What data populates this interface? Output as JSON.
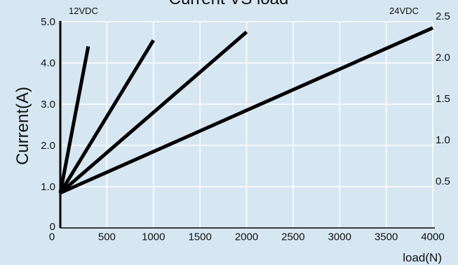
{
  "chart_data": {
    "type": "line",
    "title": "Current VS load",
    "xlabel": "load(N)",
    "ylabel": "Current(A)",
    "left_axis_tag": "12VDC",
    "right_axis_tag": "24VDC",
    "xlim": [
      0,
      4000
    ],
    "ylim": [
      0,
      5.0
    ],
    "y2lim": [
      0,
      2.5
    ],
    "x_ticks": [
      "0",
      "500",
      "1000",
      "1500",
      "2000",
      "2500",
      "3000",
      "3500",
      "4000"
    ],
    "y_ticks": [
      "0",
      "1.0",
      "2.0",
      "3.0",
      "4.0",
      "5.0"
    ],
    "y2_ticks": [
      "0.5",
      "1.0",
      "1.5",
      "2.0",
      "2.5"
    ],
    "grid": true,
    "series_color": "#000000",
    "background_color": "#d6e7f2",
    "grid_color": "#ffffff",
    "series": [
      {
        "points": [
          [
            0,
            0.85
          ],
          [
            300,
            4.4
          ]
        ]
      },
      {
        "points": [
          [
            0,
            0.85
          ],
          [
            1000,
            4.55
          ]
        ]
      },
      {
        "points": [
          [
            0,
            0.85
          ],
          [
            2000,
            4.75
          ]
        ]
      },
      {
        "points": [
          [
            0,
            0.85
          ],
          [
            4000,
            4.85
          ]
        ]
      }
    ]
  }
}
